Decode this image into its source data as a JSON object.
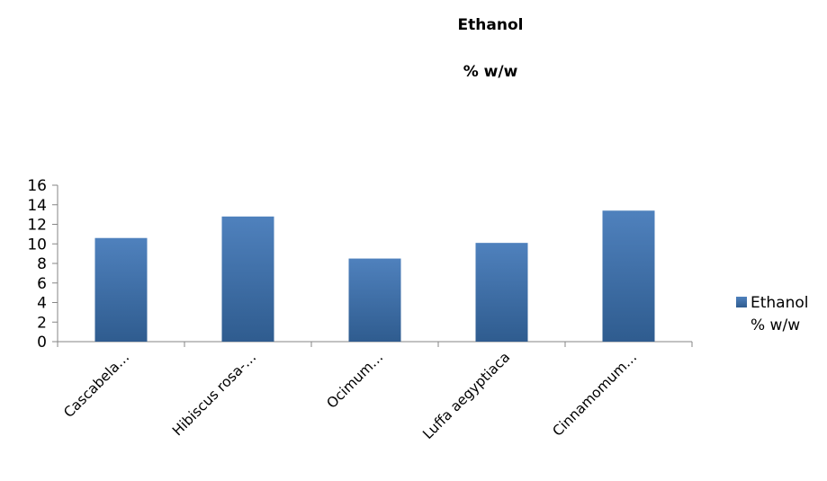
{
  "chart_data": {
    "type": "bar",
    "title": [
      "Ethanol",
      "% w/w"
    ],
    "categories": [
      "Cascabela…",
      "Hibiscus rosa-…",
      "Ocimum…",
      "Luffa aegyptiaca",
      "Cinnamomum…"
    ],
    "series": [
      {
        "name": "Ethanol % w/w",
        "name_lines": [
          "Ethanol",
          "% w/w"
        ],
        "values": [
          10.6,
          12.8,
          8.5,
          10.1,
          13.4
        ]
      }
    ],
    "ylim": [
      0,
      16
    ],
    "yticks": [
      "0",
      "2",
      "4",
      "6",
      "8",
      "10",
      "12",
      "14",
      "16"
    ],
    "xlabel": "",
    "ylabel": "",
    "grid": false,
    "legend": "right",
    "colors": {
      "bar_top": "#4f81bd",
      "bar_bottom": "#2f5c8f",
      "axis": "#868686"
    }
  }
}
